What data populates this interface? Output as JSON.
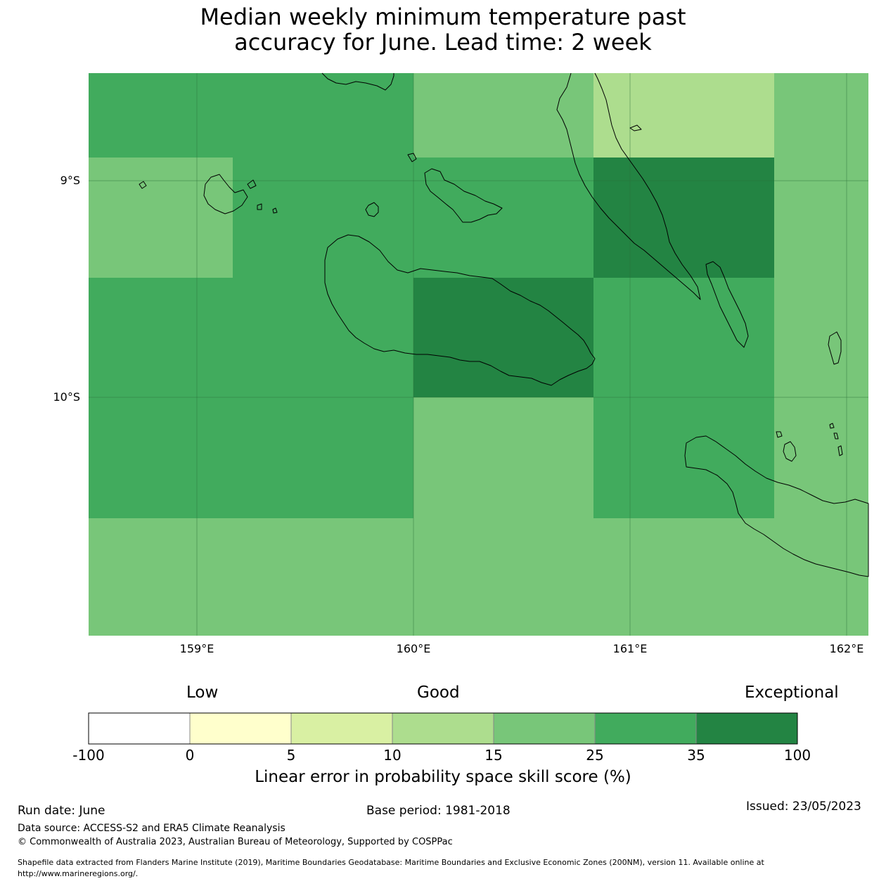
{
  "title": {
    "line1": "Median weekly minimum temperature past",
    "line2": "accuracy for June. Lead time: 2 week"
  },
  "map": {
    "lat_range": [
      -11.1,
      -8.5
    ],
    "lon_range": [
      158.5,
      162.1
    ],
    "lat_labels": [
      "9°S",
      "10°S"
    ],
    "lon_labels": [
      "159°E",
      "160°E",
      "161°E",
      "162°E"
    ],
    "gridlines": true
  },
  "colorbar": {
    "categories": [
      "Low",
      "Good",
      "Exceptional"
    ],
    "ticks": [
      "-100",
      "0",
      "5",
      "10",
      "15",
      "25",
      "35",
      "100"
    ],
    "colors": [
      "#ffffff",
      "#ffffcc",
      "#d9f0a3",
      "#addd8e",
      "#78c679",
      "#41ab5d",
      "#238443"
    ],
    "label": "Linear error in probability space skill score (%)"
  },
  "footer": {
    "run_date": "Run date: June",
    "base_period": "Base period: 1981-2018",
    "issued": "Issued: 23/05/2023",
    "data_source": "Data source: ACCESS-S2 and ERA5 Climate Reanalysis",
    "copyright": "© Commonwealth of Australia 2023, Australian Bureau of Meteorology, Supported by COSPPac",
    "shapefile_1": "Shapefile data extracted from Flanders Marine Institute (2019), Maritime Boundaries Geodatabase: Maritime Boundaries and Exclusive Economic Zones (200NM), version 11. Available online at",
    "shapefile_2": "http://www.marineregions.org/."
  }
}
